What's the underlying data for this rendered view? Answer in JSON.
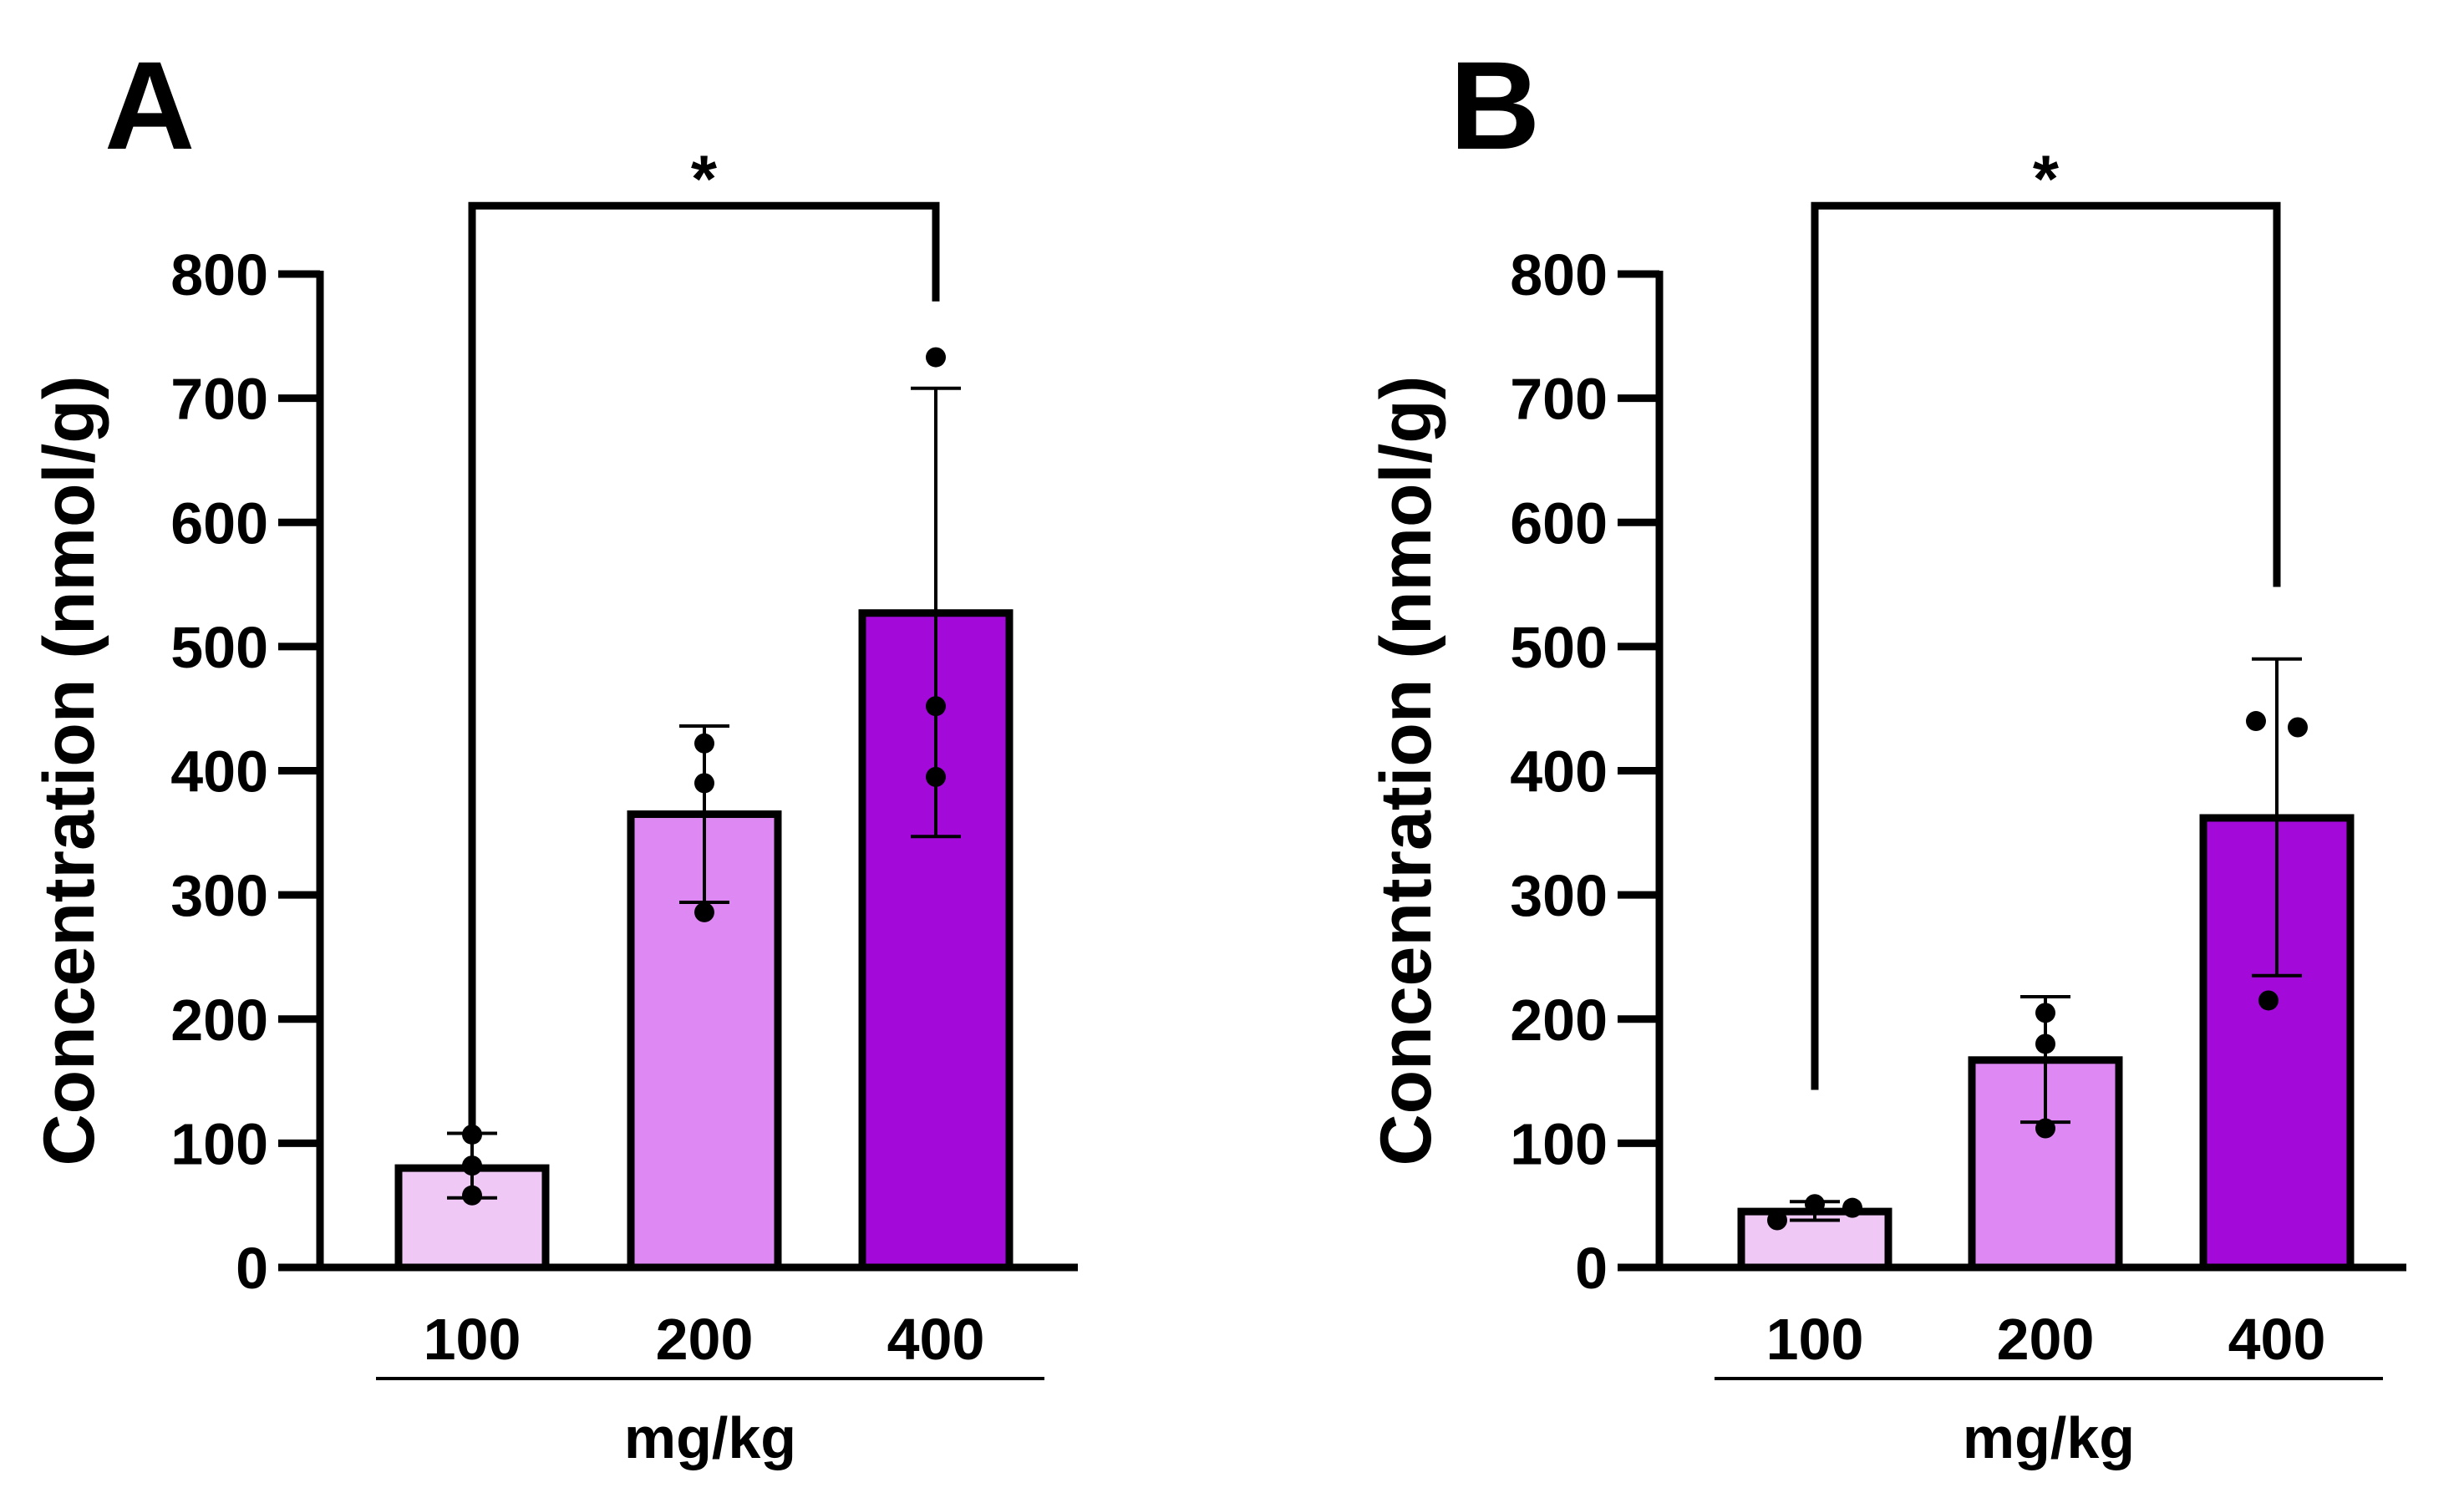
{
  "figure": {
    "panels": [
      "A",
      "B"
    ]
  },
  "chart_data": [
    {
      "panel": "A",
      "type": "bar",
      "title": "",
      "categories": [
        "100",
        "200",
        "400"
      ],
      "values": [
        80,
        365,
        527
      ],
      "error_upper": [
        108,
        436,
        708
      ],
      "error_lower": [
        56,
        294,
        347
      ],
      "points": [
        [
          107,
          82,
          58
        ],
        [
          422,
          390,
          286
        ],
        [
          733,
          452,
          395
        ]
      ],
      "colors": [
        "#efc8f6",
        "#de89f3",
        "#a30ad9"
      ],
      "xlabel": "mg/kg",
      "ylabel": "Concentration (nmol/g)",
      "ylim": [
        0,
        800
      ],
      "yticks": [
        "0",
        "100",
        "200",
        "300",
        "400",
        "500",
        "600",
        "700",
        "800"
      ],
      "significance": {
        "from": "100",
        "to": "400",
        "label": "*",
        "level": 855,
        "drop_left_to": 110,
        "drop_right_to": 778
      }
    },
    {
      "panel": "B",
      "type": "bar",
      "title": "",
      "categories": [
        "100",
        "200",
        "400"
      ],
      "values": [
        45,
        167,
        362
      ],
      "error_upper": [
        53,
        218,
        490
      ],
      "error_lower": [
        38,
        117,
        235
      ],
      "points": [
        [
          38,
          51,
          48
        ],
        [
          205,
          180,
          112
        ],
        [
          440,
          435,
          215
        ]
      ],
      "colors": [
        "#efc8f6",
        "#de89f3",
        "#a30ad9"
      ],
      "xlabel": "mg/kg",
      "ylabel": "Concentration (nmol/g)",
      "ylim": [
        0,
        800
      ],
      "yticks": [
        "0",
        "100",
        "200",
        "300",
        "400",
        "500",
        "600",
        "700",
        "800"
      ],
      "significance": {
        "from": "100",
        "to": "400",
        "label": "*",
        "level": 855,
        "drop_left_to": 143,
        "drop_right_to": 548
      }
    }
  ]
}
